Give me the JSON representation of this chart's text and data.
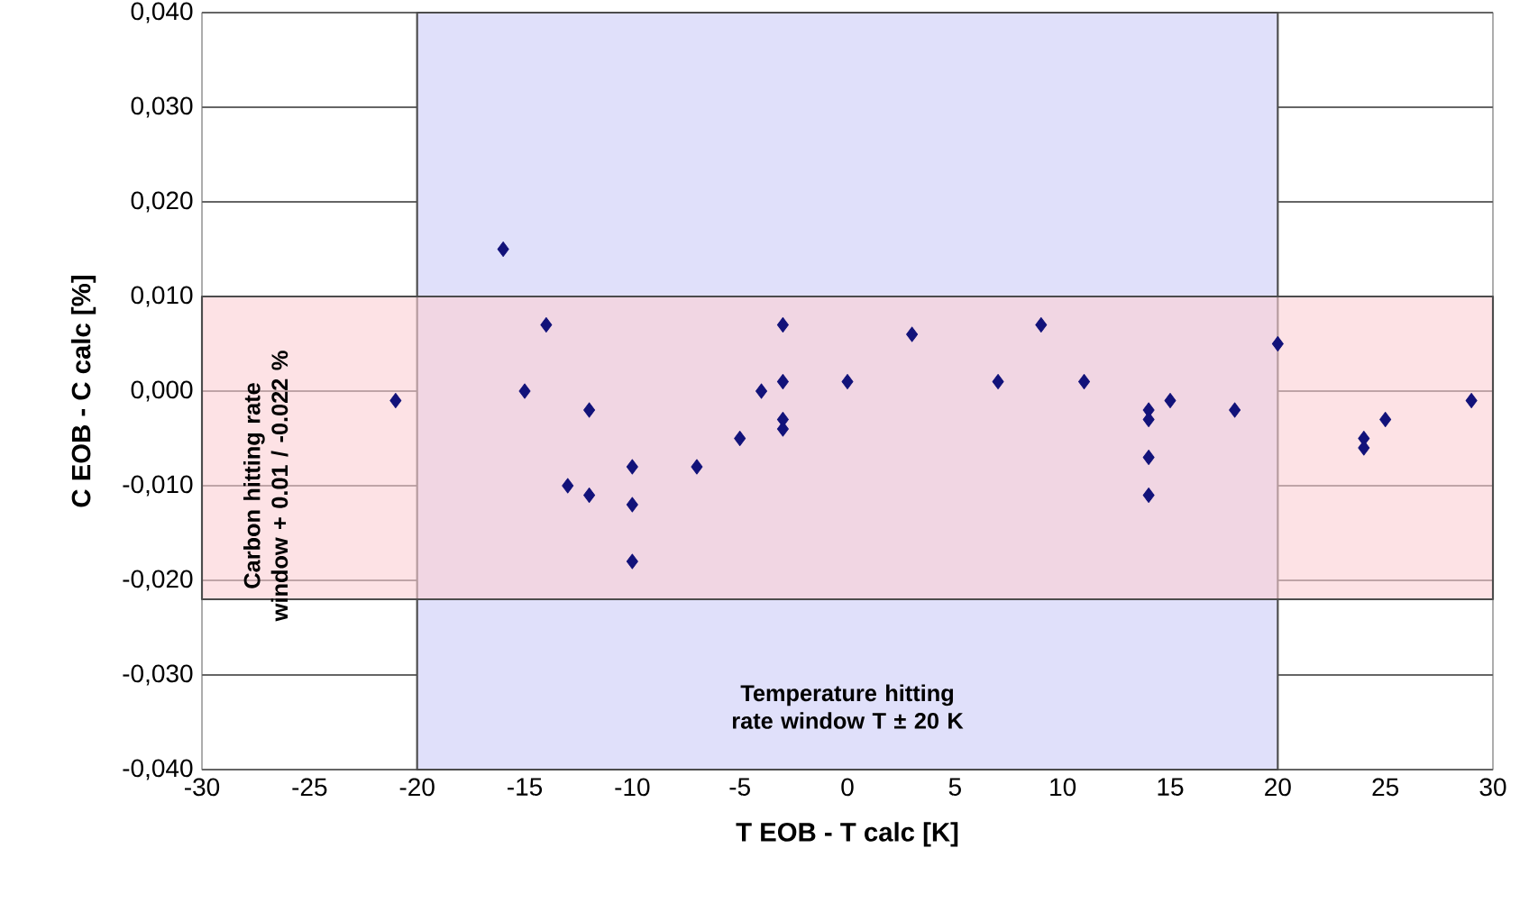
{
  "chart_data": {
    "type": "scatter",
    "xlabel": "T EOB - T calc [K]",
    "ylabel": "C EOB - C calc [%]",
    "x": [
      -21,
      -16,
      -15,
      -14,
      -13,
      -12,
      -12,
      -10,
      -10,
      -10,
      -7,
      -5,
      -4,
      -3,
      -3,
      -3,
      -3,
      0,
      3,
      7,
      9,
      11,
      14,
      14,
      14,
      14,
      15,
      18,
      20,
      24,
      24,
      25,
      29
    ],
    "series": [
      {
        "color": "#12127a",
        "values": [
          -0.001,
          0.015,
          0.0,
          0.007,
          -0.01,
          -0.002,
          -0.011,
          -0.008,
          -0.012,
          -0.018,
          -0.008,
          -0.005,
          0.0,
          0.007,
          0.001,
          -0.003,
          -0.004,
          0.001,
          0.006,
          0.001,
          0.007,
          0.001,
          -0.002,
          -0.003,
          -0.007,
          -0.011,
          -0.001,
          -0.002,
          0.005,
          -0.005,
          -0.006,
          -0.003,
          -0.001
        ]
      }
    ],
    "marker": "diamond",
    "xlim": [
      -30,
      30
    ],
    "xticks": [
      -30,
      -25,
      -20,
      -15,
      -10,
      -5,
      0,
      5,
      10,
      15,
      20,
      25,
      30
    ],
    "ylim": [
      -0.04,
      0.04
    ],
    "yticks": [
      {
        "value": -0.04,
        "label": "-0,040"
      },
      {
        "value": -0.03,
        "label": "-0,030"
      },
      {
        "value": -0.02,
        "label": "-0,020"
      },
      {
        "value": -0.01,
        "label": "-0,010"
      },
      {
        "value": 0,
        "label": "0,000"
      },
      {
        "value": 0.01,
        "label": "0,010"
      },
      {
        "value": 0.02,
        "label": "0,020"
      },
      {
        "value": 0.03,
        "label": "0,030"
      },
      {
        "value": 0.04,
        "label": "0,040"
      }
    ],
    "grid": "y",
    "bands": [
      {
        "axis": "x",
        "from": -20,
        "to": 20,
        "color": "#e0e0fa",
        "label": "Temperature hitting rate window T ± 20 K"
      },
      {
        "axis": "y",
        "from": -0.022,
        "to": 0.01,
        "color": "#fccfd3",
        "label": "Carbon hitting rate window + 0.01 / -0.022 %"
      }
    ]
  }
}
